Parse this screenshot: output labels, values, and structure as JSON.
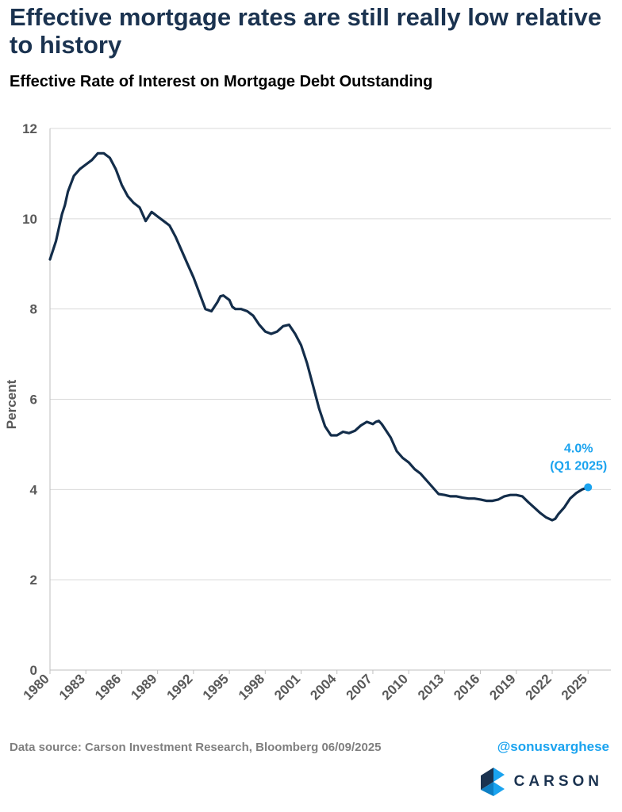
{
  "headline": "Effective mortgage rates are still really low relative to history",
  "footer": {
    "source": "Data source: Carson Investment Research, Bloomberg   06/09/2025",
    "handle": "@sonusvarghese",
    "brand": "CARSON"
  },
  "colors": {
    "line": "#132d4a",
    "accent": "#1aa3ef",
    "grid": "#d9d9d9",
    "axis_text": "#595959"
  },
  "chart_data": {
    "type": "line",
    "title": "Effective Rate of Interest on Mortgage Debt Outstanding",
    "xlabel": "",
    "ylabel": "Percent",
    "xlim": [
      1980,
      2025.25
    ],
    "ylim": [
      0,
      12
    ],
    "yticks": [
      0,
      2,
      4,
      6,
      8,
      10,
      12
    ],
    "xticks": [
      "1980",
      "1983",
      "1986",
      "1989",
      "1992",
      "1995",
      "1998",
      "2001",
      "2004",
      "2007",
      "2010",
      "2013",
      "2016",
      "2019",
      "2022",
      "2025"
    ],
    "grid": true,
    "annotation": {
      "x": 2025.0,
      "y": 4.05,
      "line1": "4.0%",
      "line2": "(Q1 2025)"
    },
    "series": [
      {
        "x": [
          1980,
          1980.5,
          1981,
          1981.25,
          1981.5,
          1982,
          1982.5,
          1983,
          1983.5,
          1984,
          1984.5,
          1985,
          1985.5,
          1986,
          1986.5,
          1987,
          1987.5,
          1988,
          1988.25,
          1988.5,
          1988.75,
          1989,
          1989.5,
          1990,
          1990.5,
          1991,
          1991.5,
          1992,
          1992.5,
          1993,
          1993.5,
          1994,
          1994.25,
          1994.5,
          1995,
          1995.25,
          1995.5,
          1996,
          1996.5,
          1997,
          1997.5,
          1998,
          1998.5,
          1999,
          1999.5,
          2000,
          2000.5,
          2001,
          2001.5,
          2002,
          2002.5,
          2003,
          2003.5,
          2004,
          2004.5,
          2005,
          2005.5,
          2006,
          2006.5,
          2007,
          2007.25,
          2007.5,
          2007.75,
          2008,
          2008.5,
          2009,
          2009.5,
          2010,
          2010.5,
          2011,
          2011.5,
          2012,
          2012.5,
          2013,
          2013.5,
          2014,
          2014.5,
          2015,
          2015.5,
          2016,
          2016.5,
          2017,
          2017.5,
          2018,
          2018.5,
          2019,
          2019.5,
          2020,
          2020.5,
          2021,
          2021.5,
          2022,
          2022.25,
          2022.5,
          2023,
          2023.5,
          2024,
          2024.5,
          2025
        ],
        "values": [
          9.1,
          9.5,
          10.1,
          10.3,
          10.6,
          10.95,
          11.1,
          11.2,
          11.3,
          11.45,
          11.45,
          11.35,
          11.1,
          10.75,
          10.5,
          10.35,
          10.25,
          9.95,
          10.05,
          10.15,
          10.1,
          10.05,
          9.95,
          9.85,
          9.6,
          9.3,
          9.0,
          8.7,
          8.35,
          8.0,
          7.95,
          8.15,
          8.28,
          8.3,
          8.2,
          8.05,
          8.0,
          8.0,
          7.95,
          7.85,
          7.65,
          7.5,
          7.45,
          7.5,
          7.62,
          7.65,
          7.45,
          7.2,
          6.8,
          6.3,
          5.8,
          5.4,
          5.2,
          5.2,
          5.28,
          5.25,
          5.3,
          5.42,
          5.5,
          5.45,
          5.5,
          5.52,
          5.45,
          5.35,
          5.15,
          4.85,
          4.7,
          4.6,
          4.45,
          4.35,
          4.2,
          4.05,
          3.9,
          3.88,
          3.85,
          3.85,
          3.82,
          3.8,
          3.8,
          3.78,
          3.75,
          3.75,
          3.78,
          3.85,
          3.88,
          3.88,
          3.85,
          3.72,
          3.6,
          3.48,
          3.38,
          3.32,
          3.35,
          3.45,
          3.6,
          3.8,
          3.92,
          4.0,
          4.05
        ]
      }
    ]
  }
}
